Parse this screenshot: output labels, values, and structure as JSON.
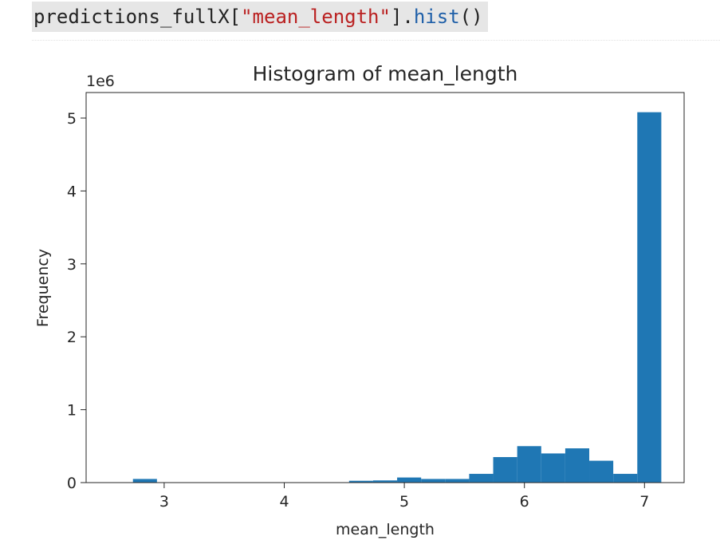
{
  "code": {
    "object": "predictions_fullX",
    "open_bracket": "[",
    "key_string": "\"mean_length\"",
    "close_bracket": "].",
    "method": "hist",
    "call": "()"
  },
  "chart_data": {
    "type": "bar",
    "title": "Histogram of mean_length",
    "xlabel": "mean_length",
    "ylabel": "Frequency",
    "y_scale_label": "1e6",
    "xlim": [
      2.35,
      7.33
    ],
    "ylim": [
      0,
      5.35
    ],
    "x_ticks": [
      3,
      4,
      5,
      6,
      7
    ],
    "y_ticks": [
      0,
      1,
      2,
      3,
      4,
      5
    ],
    "grid": false,
    "bar_color": "#1f77b4",
    "bins": [
      {
        "x0": 2.74,
        "x1": 2.94,
        "value": 0.05
      },
      {
        "x0": 2.94,
        "x1": 3.14,
        "value": 0.003
      },
      {
        "x0": 3.14,
        "x1": 3.34,
        "value": 0.003
      },
      {
        "x0": 3.34,
        "x1": 3.54,
        "value": 0.003
      },
      {
        "x0": 3.54,
        "x1": 3.74,
        "value": 0.003
      },
      {
        "x0": 3.74,
        "x1": 3.94,
        "value": 0.003
      },
      {
        "x0": 3.94,
        "x1": 4.14,
        "value": 0.003
      },
      {
        "x0": 4.14,
        "x1": 4.34,
        "value": 0.003
      },
      {
        "x0": 4.34,
        "x1": 4.54,
        "value": 0.005
      },
      {
        "x0": 4.54,
        "x1": 4.74,
        "value": 0.025
      },
      {
        "x0": 4.74,
        "x1": 4.94,
        "value": 0.03
      },
      {
        "x0": 4.94,
        "x1": 5.14,
        "value": 0.07
      },
      {
        "x0": 5.14,
        "x1": 5.34,
        "value": 0.05
      },
      {
        "x0": 5.34,
        "x1": 5.54,
        "value": 0.05
      },
      {
        "x0": 5.54,
        "x1": 5.74,
        "value": 0.12
      },
      {
        "x0": 5.74,
        "x1": 5.94,
        "value": 0.35
      },
      {
        "x0": 5.94,
        "x1": 6.14,
        "value": 0.5
      },
      {
        "x0": 6.14,
        "x1": 6.34,
        "value": 0.4
      },
      {
        "x0": 6.34,
        "x1": 6.54,
        "value": 0.47
      },
      {
        "x0": 6.54,
        "x1": 6.74,
        "value": 0.3
      },
      {
        "x0": 6.74,
        "x1": 6.94,
        "value": 0.12
      },
      {
        "x0": 6.94,
        "x1": 7.14,
        "value": 5.08
      }
    ]
  }
}
